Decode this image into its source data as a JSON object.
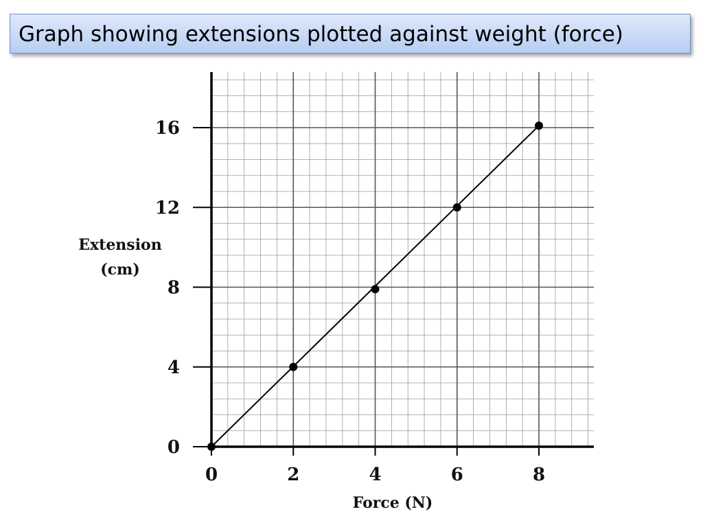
{
  "slide": {
    "title": "Graph showing extensions plotted against weight (force)"
  },
  "chart_data": {
    "type": "scatter",
    "title": "",
    "xlabel": "Force (N)",
    "ylabel_lines": [
      "Extension",
      "(cm)"
    ],
    "xlim": [
      0,
      9.2
    ],
    "ylim": [
      0,
      18
    ],
    "x_ticks": [
      "0",
      "2",
      "4",
      "6",
      "8"
    ],
    "y_ticks": [
      "0",
      "4",
      "8",
      "12",
      "16"
    ],
    "grid": true,
    "series": [
      {
        "points": [
          {
            "x": 0,
            "y": 0
          },
          {
            "x": 2,
            "y": 4
          },
          {
            "x": 4,
            "y": 7.9
          },
          {
            "x": 6,
            "y": 12
          },
          {
            "x": 8,
            "y": 16.1
          }
        ]
      }
    ],
    "best_fit_line": {
      "from": [
        0,
        0
      ],
      "to": [
        8,
        16.1
      ]
    }
  }
}
